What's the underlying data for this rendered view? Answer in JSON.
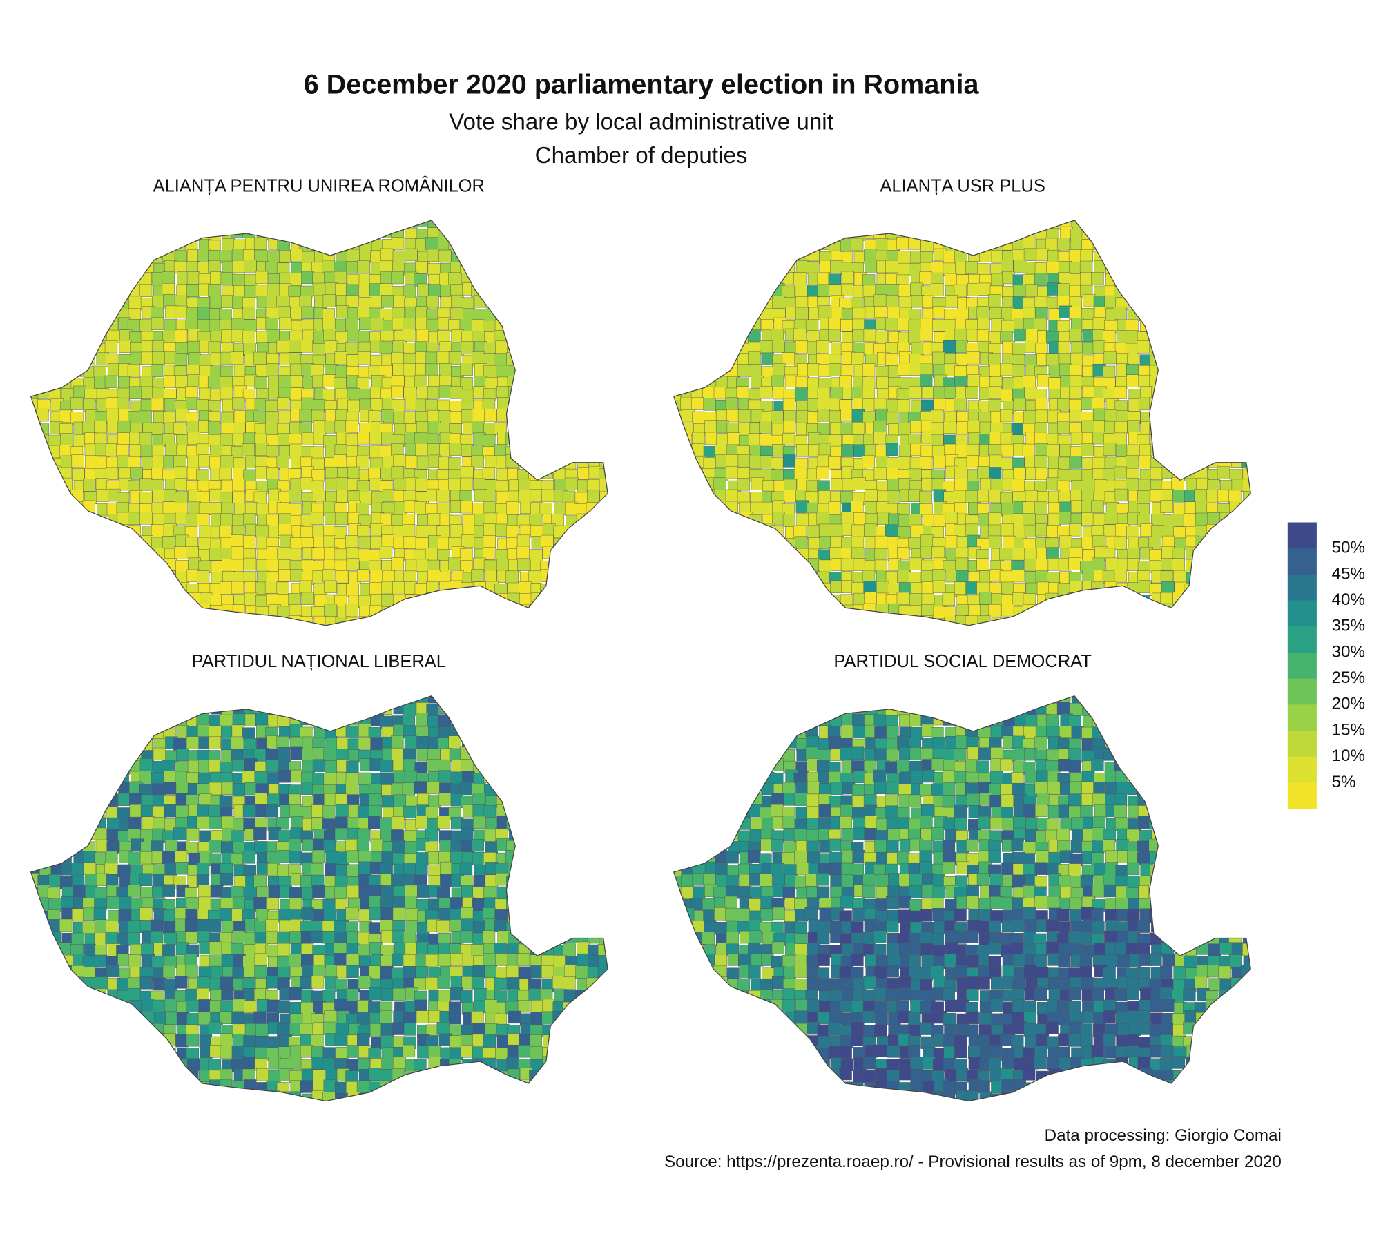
{
  "title": "6 December 2020 parliamentary election in Romania",
  "subtitle": [
    "Vote share by local administrative unit",
    "Chamber of deputies"
  ],
  "panels": [
    {
      "title": "ALIANȚA PENTRU UNIREA ROMÂNILOR"
    },
    {
      "title": "ALIANȚA USR PLUS"
    },
    {
      "title": "PARTIDUL NAȚIONAL LIBERAL"
    },
    {
      "title": "PARTIDUL SOCIAL DEMOCRAT"
    }
  ],
  "legend": {
    "labels": [
      "50%",
      "45%",
      "40%",
      "35%",
      "30%",
      "25%",
      "20%",
      "15%",
      "10%",
      "5%"
    ],
    "colors": [
      "#3f4a8a",
      "#34618d",
      "#2a788e",
      "#22908c",
      "#2aa283",
      "#45b36e",
      "#6ec458",
      "#9ad146",
      "#bfd93a",
      "#dde132",
      "#f1e42a"
    ]
  },
  "caption": [
    "Data processing: Giorgio Comai",
    "Source: https://prezenta.roaep.ro/ - Provisional results as of 9pm, 8 december 2020"
  ]
}
